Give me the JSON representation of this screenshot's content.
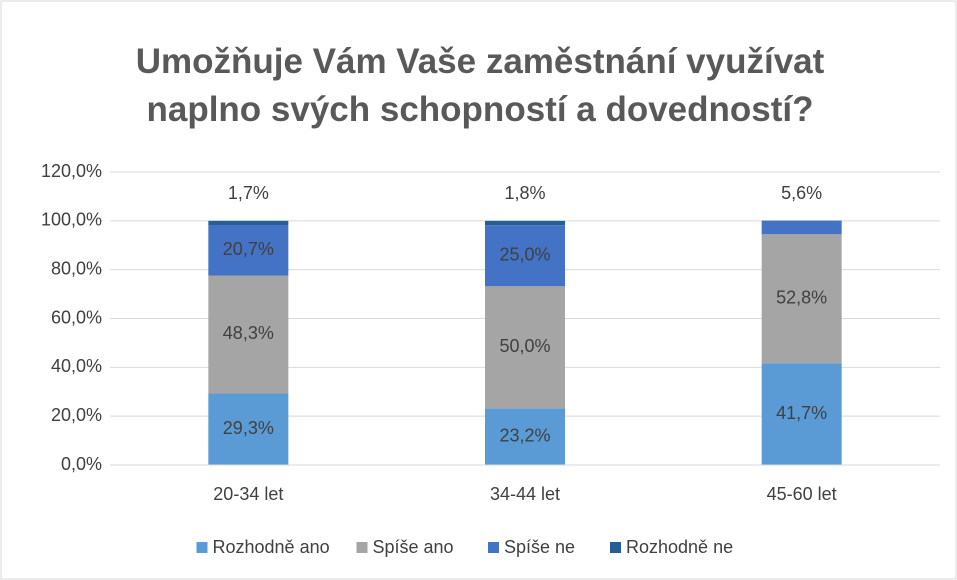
{
  "chart_data": {
    "type": "stacked_bar",
    "title": "Umožňuje Vám Vaše zaměstnání využívat naplno svých schopností a dovedností?",
    "categories": [
      "20-34 let",
      "34-44 let",
      "45-60 let"
    ],
    "series": [
      {
        "name": "Rozhodně ano",
        "color": "#5b9bd5",
        "values": [
          29.3,
          23.2,
          41.7
        ],
        "value_labels": [
          "29,3%",
          "23,2%",
          "41,7%"
        ]
      },
      {
        "name": "Spíše ano",
        "color": "#a5a5a5",
        "values": [
          48.3,
          50.0,
          52.8
        ],
        "value_labels": [
          "48,3%",
          "50,0%",
          "52,8%"
        ]
      },
      {
        "name": "Spíše ne",
        "color": "#4472c4",
        "values": [
          20.7,
          25.0,
          5.6
        ],
        "value_labels": [
          "20,7%",
          "25,0%",
          "5,6%"
        ]
      },
      {
        "name": "Rozhodně ne",
        "color": "#255e91",
        "values": [
          1.7,
          1.8,
          null
        ],
        "value_labels": [
          "1,7%",
          "1,8%",
          null
        ]
      }
    ],
    "ylim": [
      0,
      120
    ],
    "yticks": [
      {
        "value": 0,
        "label": "0,0%"
      },
      {
        "value": 20,
        "label": "20,0%"
      },
      {
        "value": 40,
        "label": "40,0%"
      },
      {
        "value": 60,
        "label": "60,0%"
      },
      {
        "value": 80,
        "label": "80,0%"
      },
      {
        "value": 100,
        "label": "100,0%"
      },
      {
        "value": 120,
        "label": "120,0%"
      }
    ],
    "grid": true,
    "legend": "bottom"
  }
}
